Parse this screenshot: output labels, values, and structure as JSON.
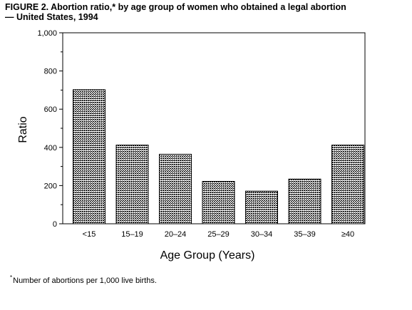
{
  "figure": {
    "title_line1": "FIGURE 2. Abortion ratio,* by age group of women who obtained a legal abortion",
    "title_line2": "— United States, 1994",
    "footnote_mark": "*",
    "footnote_text": "Number of abortions per 1,000 live births."
  },
  "chart_data": {
    "type": "bar",
    "categories": [
      "<15",
      "15–19",
      "20–24",
      "25–29",
      "30–34",
      "35–39",
      "≥40"
    ],
    "values": [
      702,
      412,
      364,
      222,
      171,
      234,
      412
    ],
    "xlabel": "Age Group (Years)",
    "ylabel": "Ratio",
    "ylim": [
      0,
      1000
    ],
    "yticks": [
      0,
      200,
      400,
      600,
      800,
      1000
    ],
    "ytick_labels": [
      "0",
      "200",
      "400",
      "600",
      "800",
      "1,000"
    ],
    "minor_ticks": true,
    "grid": false,
    "bar_fill": "crosshatch",
    "colors": {
      "bar_edge": "#000000",
      "hatch": "#000000",
      "background": "#ffffff"
    }
  }
}
